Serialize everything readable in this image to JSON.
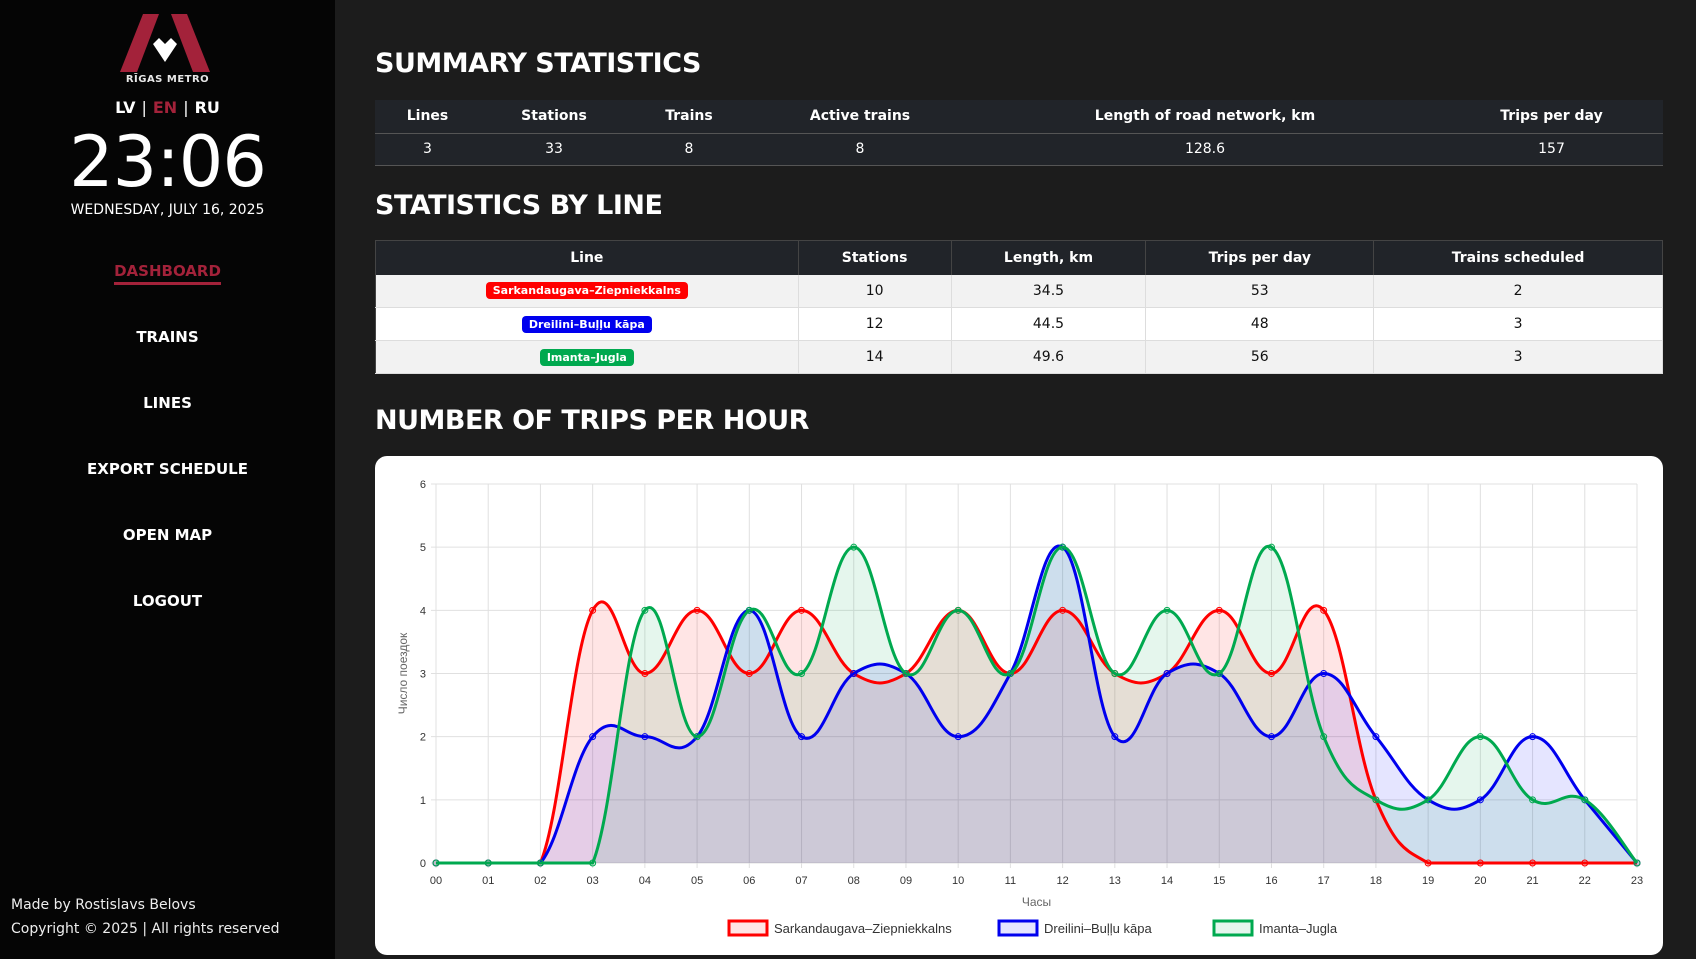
{
  "sidebar": {
    "logo_text": "RĪGAS METRO",
    "lang": [
      "LV",
      "EN",
      "RU"
    ],
    "lang_active": "EN",
    "time": "23:06",
    "date": "WEDNESDAY, JULY 16, 2025",
    "nav": [
      "DASHBOARD",
      "TRAINS",
      "LINES",
      "EXPORT SCHEDULE",
      "OPEN MAP",
      "LOGOUT"
    ],
    "footer": [
      "Made by Rostislavs Belovs",
      "Copyright © 2025 | All rights reserved"
    ],
    "accent": "#a3223a"
  },
  "summary": {
    "title": "SUMMARY STATISTICS",
    "headers": [
      "Lines",
      "Stations",
      "Trains",
      "Active trains",
      "Length of road network, km",
      "Trips per day"
    ],
    "values": [
      "3",
      "33",
      "8",
      "8",
      "128.6",
      "157"
    ]
  },
  "by_line": {
    "title": "STATISTICS BY LINE",
    "headers": [
      "Line",
      "Stations",
      "Length, km",
      "Trips per day",
      "Trains scheduled"
    ],
    "rows": [
      {
        "line": "Sarkandaugava–Ziepniekkalns",
        "color": "#ff0000",
        "stations": "10",
        "length": "34.5",
        "trips": "53",
        "trains": "2"
      },
      {
        "line": "Dreilini–Buļļu kāpa",
        "color": "#0000ee",
        "stations": "12",
        "length": "44.5",
        "trips": "48",
        "trains": "3"
      },
      {
        "line": "Imanta–Jugla",
        "color": "#00a94f",
        "stations": "14",
        "length": "49.6",
        "trips": "56",
        "trains": "3"
      }
    ]
  },
  "trips_chart": {
    "title": "NUMBER OF TRIPS PER HOUR"
  },
  "chart_data": {
    "type": "area",
    "xlabel": "Часы",
    "ylabel": "Число поездок",
    "ylim": [
      0,
      6
    ],
    "yticks": [
      0,
      1,
      2,
      3,
      4,
      5,
      6
    ],
    "grid": true,
    "legend": "bottom",
    "categories": [
      "00",
      "01",
      "02",
      "03",
      "04",
      "05",
      "06",
      "07",
      "08",
      "09",
      "10",
      "11",
      "12",
      "13",
      "14",
      "15",
      "16",
      "17",
      "18",
      "19",
      "20",
      "21",
      "22",
      "23"
    ],
    "series": [
      {
        "name": "Sarkandaugava–Ziepniekkalns",
        "color": "#ff0000",
        "fill": "rgba(255,0,0,0.1)",
        "values": [
          0,
          0,
          0,
          4,
          3,
          4,
          3,
          4,
          3,
          3,
          4,
          3,
          4,
          3,
          3,
          4,
          3,
          4,
          1,
          0,
          0,
          0,
          0,
          0
        ]
      },
      {
        "name": "Dreilini–Buļļu kāpa",
        "color": "#0000ee",
        "fill": "rgba(0,0,255,0.1)",
        "values": [
          0,
          0,
          0,
          2,
          2,
          2,
          4,
          2,
          3,
          3,
          2,
          3,
          5,
          2,
          3,
          3,
          2,
          3,
          2,
          1,
          1,
          2,
          1,
          0
        ]
      },
      {
        "name": "Imanta–Jugla",
        "color": "#00a94f",
        "fill": "rgba(0,169,79,0.1)",
        "values": [
          0,
          0,
          0,
          0,
          4,
          2,
          4,
          3,
          5,
          3,
          4,
          3,
          5,
          3,
          4,
          3,
          5,
          2,
          1,
          1,
          2,
          1,
          1,
          0
        ]
      }
    ]
  }
}
